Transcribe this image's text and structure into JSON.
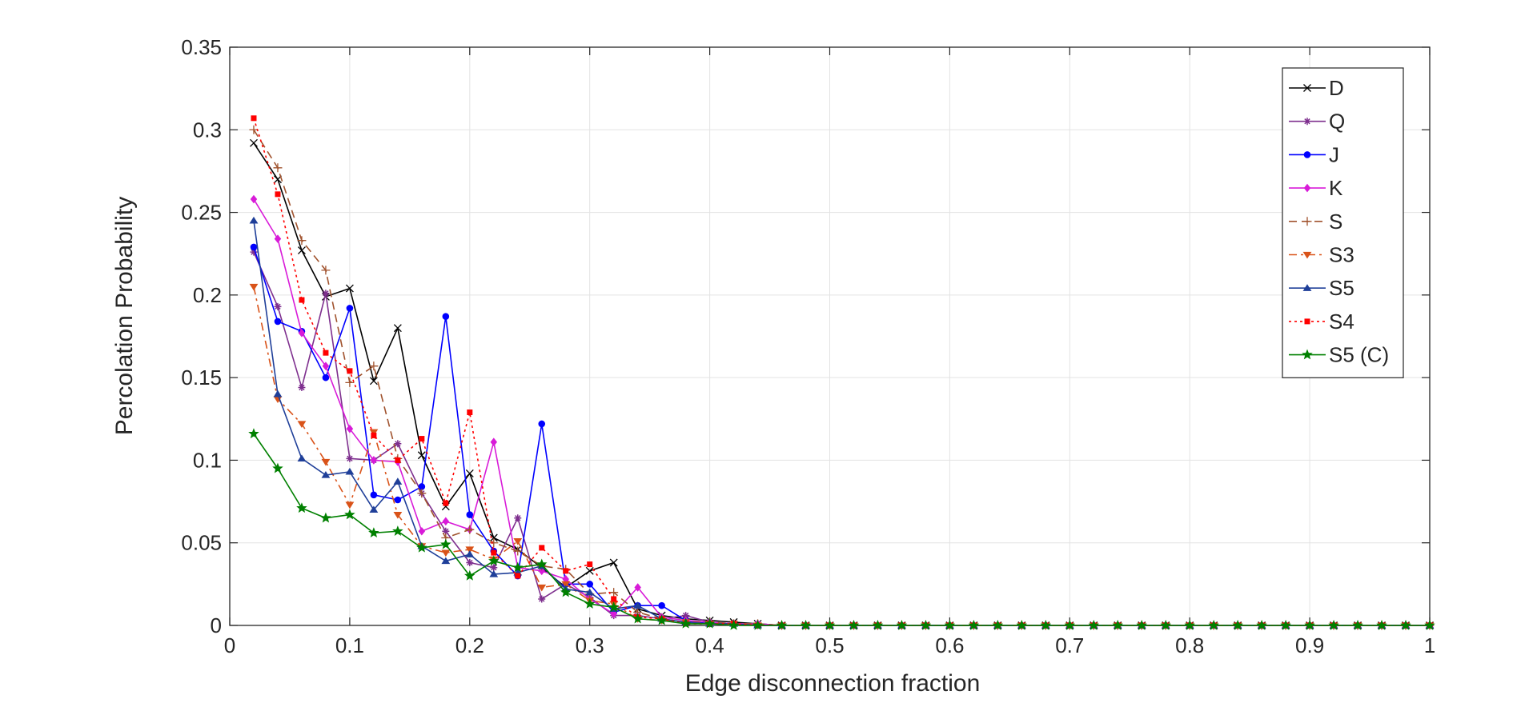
{
  "chart_data": {
    "type": "line",
    "title": "",
    "xlabel": "Edge disconnection fraction",
    "ylabel": "Percolation Probability",
    "xlim": [
      0,
      1
    ],
    "ylim": [
      0,
      0.35
    ],
    "xticks": [
      "0",
      "0.1",
      "0.2",
      "0.3",
      "0.4",
      "0.5",
      "0.6",
      "0.7",
      "0.8",
      "0.9",
      "1"
    ],
    "yticks": [
      "0",
      "0.05",
      "0.1",
      "0.15",
      "0.2",
      "0.25",
      "0.3",
      "0.35"
    ],
    "grid": true,
    "legend_position": "top-right",
    "x": [
      0.02,
      0.04,
      0.06,
      0.08,
      0.1,
      0.12,
      0.14,
      0.16,
      0.18,
      0.2,
      0.22,
      0.24,
      0.26,
      0.28,
      0.3,
      0.32,
      0.34,
      0.36,
      0.38,
      0.4,
      0.42,
      0.44,
      0.46,
      0.48,
      0.5,
      0.52,
      0.54,
      0.56,
      0.58,
      0.6,
      0.62,
      0.64,
      0.66,
      0.68,
      0.7,
      0.72,
      0.74,
      0.76,
      0.78,
      0.8,
      0.82,
      0.84,
      0.86,
      0.88,
      0.9,
      0.92,
      0.94,
      0.96,
      0.98,
      1.0
    ],
    "series": [
      {
        "name": "D",
        "color": "#000000",
        "dash": "",
        "marker": "x",
        "values": [
          0.292,
          0.27,
          0.227,
          0.199,
          0.204,
          0.148,
          0.18,
          0.103,
          0.072,
          0.092,
          0.053,
          0.046,
          0.035,
          0.023,
          0.033,
          0.038,
          0.01,
          0.006,
          0.004,
          0.003,
          0.002,
          0.001,
          0,
          0,
          0,
          0,
          0,
          0,
          0,
          0,
          0,
          0,
          0,
          0,
          0,
          0,
          0,
          0,
          0,
          0,
          0,
          0,
          0,
          0,
          0,
          0,
          0,
          0,
          0,
          0
        ]
      },
      {
        "name": "Q",
        "color": "#7E2F8E",
        "dash": "",
        "marker": "asterisk",
        "values": [
          0.226,
          0.193,
          0.144,
          0.201,
          0.101,
          0.1,
          0.11,
          0.08,
          0.057,
          0.038,
          0.035,
          0.065,
          0.016,
          0.025,
          0.017,
          0.006,
          0.006,
          0.004,
          0.006,
          0.002,
          0.001,
          0.001,
          0,
          0,
          0,
          0,
          0,
          0,
          0,
          0,
          0,
          0,
          0,
          0,
          0,
          0,
          0,
          0,
          0,
          0,
          0,
          0,
          0,
          0,
          0,
          0,
          0,
          0,
          0,
          0
        ]
      },
      {
        "name": "J",
        "color": "#0000FF",
        "dash": "",
        "marker": "dot",
        "values": [
          0.229,
          0.184,
          0.178,
          0.15,
          0.192,
          0.079,
          0.076,
          0.084,
          0.187,
          0.067,
          0.045,
          0.03,
          0.122,
          0.025,
          0.025,
          0.008,
          0.012,
          0.012,
          0.003,
          0.001,
          0.001,
          0,
          0,
          0,
          0,
          0,
          0,
          0,
          0,
          0,
          0,
          0,
          0,
          0,
          0,
          0,
          0,
          0,
          0,
          0,
          0,
          0,
          0,
          0,
          0,
          0,
          0,
          0,
          0,
          0
        ]
      },
      {
        "name": "K",
        "color": "#D81BD8",
        "dash": "",
        "marker": "diamond",
        "values": [
          0.258,
          0.234,
          0.177,
          0.157,
          0.119,
          0.1,
          0.099,
          0.057,
          0.063,
          0.058,
          0.111,
          0.035,
          0.033,
          0.028,
          0.016,
          0.007,
          0.023,
          0.005,
          0.003,
          0.002,
          0.001,
          0.001,
          0,
          0,
          0,
          0,
          0,
          0,
          0,
          0,
          0,
          0,
          0,
          0,
          0,
          0,
          0,
          0,
          0,
          0,
          0,
          0,
          0,
          0,
          0,
          0,
          0,
          0,
          0,
          0
        ]
      },
      {
        "name": "S",
        "color": "#A0522D",
        "dash": "10,6",
        "marker": "plus",
        "values": [
          0.3,
          0.277,
          0.233,
          0.215,
          0.147,
          0.157,
          0.101,
          0.08,
          0.053,
          0.058,
          0.05,
          0.045,
          0.036,
          0.034,
          0.019,
          0.02,
          0.008,
          0.004,
          0.002,
          0.002,
          0.001,
          0.001,
          0,
          0,
          0,
          0,
          0,
          0,
          0,
          0,
          0,
          0,
          0,
          0,
          0,
          0,
          0,
          0,
          0,
          0,
          0,
          0,
          0,
          0,
          0,
          0,
          0,
          0,
          0,
          0
        ]
      },
      {
        "name": "S3",
        "color": "#D95319",
        "dash": "10,5,3,5",
        "marker": "triangle-down",
        "values": [
          0.205,
          0.137,
          0.122,
          0.099,
          0.073,
          0.117,
          0.067,
          0.048,
          0.044,
          0.046,
          0.04,
          0.051,
          0.023,
          0.025,
          0.015,
          0.013,
          0.004,
          0.003,
          0.002,
          0.001,
          0.001,
          0,
          0,
          0,
          0,
          0,
          0,
          0,
          0,
          0,
          0,
          0,
          0,
          0,
          0,
          0,
          0,
          0,
          0,
          0,
          0,
          0,
          0,
          0,
          0,
          0,
          0,
          0,
          0,
          0
        ]
      },
      {
        "name": "S5",
        "color": "#1F3F99",
        "dash": "",
        "marker": "triangle-up",
        "values": [
          0.245,
          0.14,
          0.101,
          0.091,
          0.093,
          0.07,
          0.087,
          0.048,
          0.039,
          0.043,
          0.031,
          0.032,
          0.036,
          0.022,
          0.02,
          0.01,
          0.012,
          0.004,
          0.002,
          0.001,
          0.001,
          0,
          0,
          0,
          0,
          0,
          0,
          0,
          0,
          0,
          0,
          0,
          0,
          0,
          0,
          0,
          0,
          0,
          0,
          0,
          0,
          0,
          0,
          0,
          0,
          0,
          0,
          0,
          0,
          0
        ]
      },
      {
        "name": "S4",
        "color": "#FF0000",
        "dash": "3,4",
        "marker": "square",
        "values": [
          0.307,
          0.261,
          0.197,
          0.165,
          0.154,
          0.115,
          0.1,
          0.113,
          0.074,
          0.129,
          0.044,
          0.03,
          0.047,
          0.033,
          0.037,
          0.016,
          0.005,
          0.004,
          0.001,
          0.001,
          0.001,
          0,
          0,
          0,
          0,
          0,
          0,
          0,
          0,
          0,
          0,
          0,
          0,
          0,
          0,
          0,
          0,
          0,
          0,
          0,
          0,
          0,
          0,
          0,
          0,
          0,
          0,
          0,
          0,
          0
        ]
      },
      {
        "name": "S5 (C)",
        "color": "#008000",
        "dash": "",
        "marker": "star",
        "values": [
          0.116,
          0.095,
          0.071,
          0.065,
          0.067,
          0.056,
          0.057,
          0.047,
          0.049,
          0.03,
          0.039,
          0.035,
          0.037,
          0.02,
          0.013,
          0.011,
          0.004,
          0.003,
          0.001,
          0.001,
          0,
          0,
          0,
          0,
          0,
          0,
          0,
          0,
          0,
          0,
          0,
          0,
          0,
          0,
          0,
          0,
          0,
          0,
          0,
          0,
          0,
          0,
          0,
          0,
          0,
          0,
          0,
          0,
          0,
          0
        ]
      }
    ]
  }
}
